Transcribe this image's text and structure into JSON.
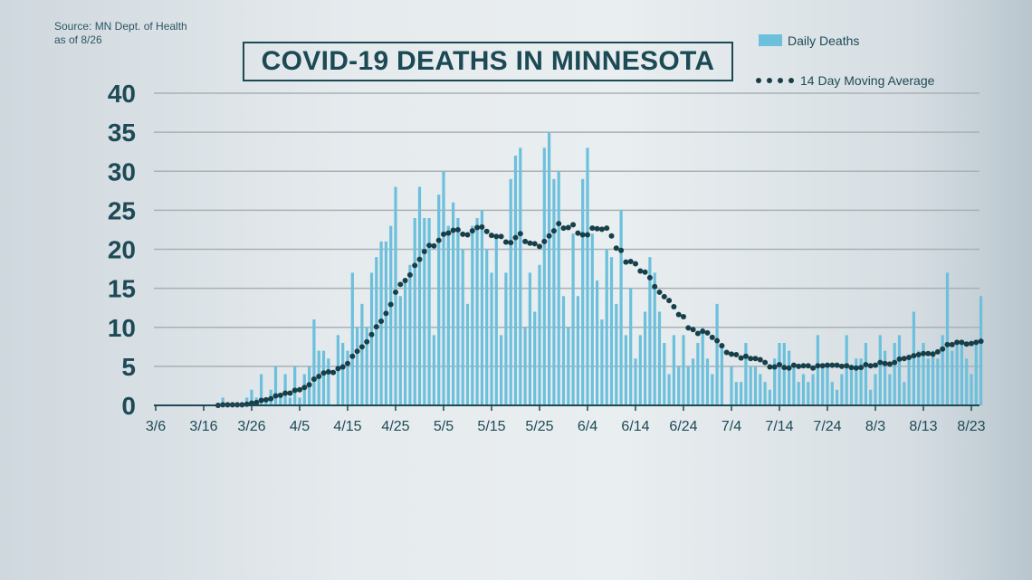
{
  "source": {
    "line1": "Source: MN Dept. of Health",
    "line2": "as of 8/26"
  },
  "chart_data": {
    "type": "bar",
    "title": "COVID-19 DEATHS IN MINNESOTA",
    "xlabel": "",
    "ylabel": "",
    "ylim": [
      0,
      40
    ],
    "y_ticks": [
      "0",
      "5",
      "10",
      "15",
      "20",
      "25",
      "30",
      "35",
      "40"
    ],
    "x_ticks": [
      "3/6",
      "3/16",
      "3/26",
      "4/5",
      "4/15",
      "4/25",
      "5/5",
      "5/15",
      "5/25",
      "6/4",
      "6/14",
      "6/24",
      "7/4",
      "7/14",
      "7/24",
      "8/3",
      "8/13",
      "8/23"
    ],
    "grid": true,
    "legend_position": "top-right",
    "colors": {
      "bars": "#6cc0dc",
      "moving_average": "#173f4a",
      "text": "#1d4a56"
    },
    "series": [
      {
        "name": "Daily Deaths",
        "type": "bar",
        "by_month": [
          {
            "month": 3,
            "start_day": 6,
            "values": [
              0,
              0,
              0,
              0,
              0,
              0,
              0,
              0,
              0,
              0,
              0,
              0,
              0,
              0,
              1,
              0,
              0,
              0,
              0,
              1,
              2,
              1,
              4,
              1,
              2,
              5
            ]
          },
          {
            "month": 4,
            "start_day": 1,
            "values": [
              1,
              4,
              1,
              5,
              1,
              4,
              5,
              11,
              7,
              7,
              6,
              0,
              9,
              8,
              7,
              17,
              10,
              13,
              10,
              17,
              19,
              21,
              21,
              23,
              28,
              14,
              16,
              18,
              24,
              28
            ]
          },
          {
            "month": 5,
            "start_day": 1,
            "values": [
              24,
              24,
              9,
              27,
              30,
              23,
              26,
              24,
              20,
              13,
              23,
              24,
              25,
              20,
              17,
              22,
              9,
              17,
              29,
              32,
              33,
              10,
              17,
              12,
              18,
              33,
              35,
              29,
              30,
              14,
              10
            ]
          },
          {
            "month": 6,
            "start_day": 1,
            "values": [
              22,
              14,
              29,
              33,
              22,
              16,
              11,
              20,
              19,
              13,
              25,
              9,
              15,
              6,
              9,
              12,
              19,
              17,
              12,
              8,
              4,
              9,
              5,
              9,
              5,
              6,
              8,
              10,
              6,
              4
            ]
          },
          {
            "month": 7,
            "start_day": 1,
            "values": [
              13,
              8,
              0,
              5,
              3,
              3,
              8,
              5,
              5,
              4,
              3,
              2,
              6,
              8,
              8,
              7,
              5,
              3,
              4,
              3,
              4,
              9,
              5,
              5,
              3,
              2,
              4,
              9,
              5,
              6,
              6
            ]
          },
          {
            "month": 8,
            "start_day": 1,
            "values": [
              8,
              2,
              4,
              9,
              7,
              4,
              8,
              9,
              3,
              6,
              12,
              7,
              8,
              6,
              7,
              6,
              9,
              17,
              7,
              8,
              8,
              6,
              4,
              8,
              14
            ]
          }
        ]
      },
      {
        "name": "14 Day Moving Average",
        "type": "dotted-line",
        "window_days": 14
      }
    ]
  }
}
